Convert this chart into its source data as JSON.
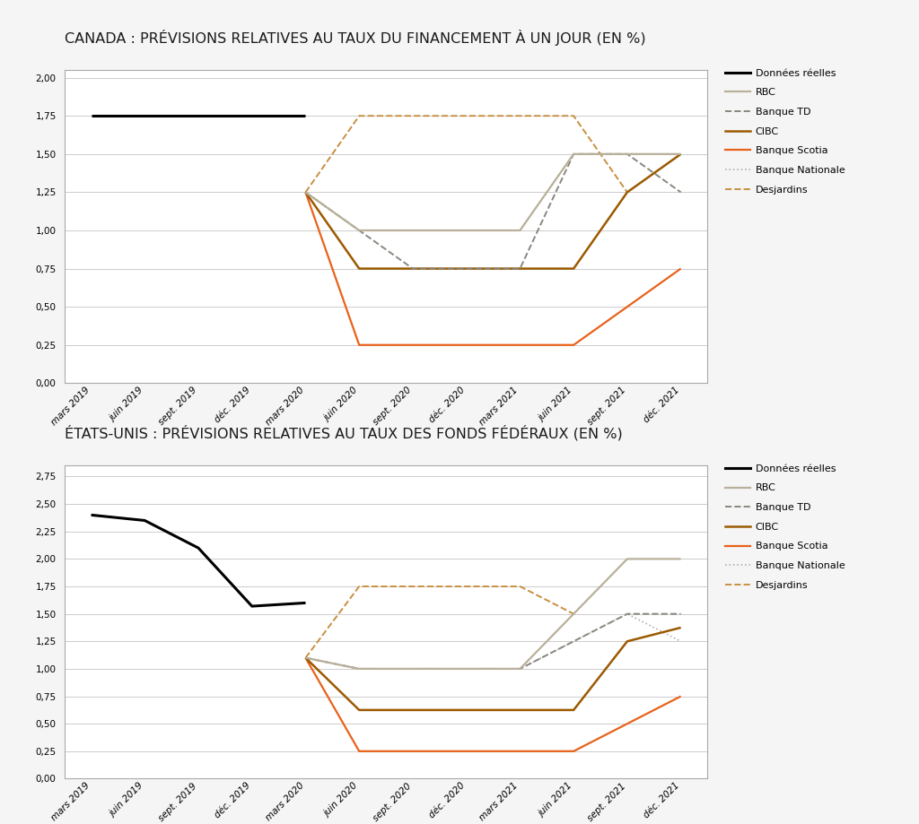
{
  "title1": "CANADA : PRÉVISIONS RELATIVES AU TAUX DU FINANCEMENT À UN JOUR (EN %)",
  "title2": "ÉTATS-UNIS : PRÉVISIONS RELATIVES AU TAUX DES FONDS FÉDÉRAUX (EN %)",
  "x_labels": [
    "mars 2019",
    "juin 2019",
    "sept. 2019",
    "déc. 2019",
    "mars 2020",
    "juin 2020",
    "sept. 2020",
    "déc. 2020",
    "mars 2021",
    "juin 2021",
    "sept. 2021",
    "déc. 2021"
  ],
  "canada": {
    "donnees_reelles": [
      1.75,
      1.75,
      1.75,
      1.75,
      1.75,
      null,
      null,
      null,
      null,
      null,
      null,
      null
    ],
    "rbc": [
      null,
      null,
      null,
      null,
      1.25,
      1.0,
      1.0,
      1.0,
      1.0,
      1.5,
      1.5,
      1.5
    ],
    "banque_td": [
      null,
      null,
      null,
      null,
      1.25,
      1.0,
      0.75,
      0.75,
      0.75,
      1.5,
      1.5,
      1.25
    ],
    "cibc": [
      null,
      null,
      null,
      null,
      1.25,
      0.75,
      0.75,
      0.75,
      0.75,
      0.75,
      1.25,
      1.5
    ],
    "banque_scotia": [
      null,
      null,
      null,
      null,
      1.25,
      0.25,
      0.25,
      0.25,
      0.25,
      0.25,
      0.5,
      0.75
    ],
    "banque_nationale": [
      null,
      null,
      null,
      null,
      1.25,
      1.0,
      1.0,
      1.0,
      1.0,
      1.5,
      1.5,
      1.5
    ],
    "desjardins": [
      null,
      null,
      null,
      null,
      1.25,
      1.75,
      1.75,
      1.75,
      1.75,
      1.75,
      1.25,
      null
    ],
    "ylim": [
      0.0,
      2.05
    ],
    "yticks": [
      0.0,
      0.25,
      0.5,
      0.75,
      1.0,
      1.25,
      1.5,
      1.75,
      2.0
    ]
  },
  "us": {
    "donnees_reelles": [
      2.4,
      2.35,
      2.1,
      1.57,
      1.6,
      null,
      null,
      null,
      null,
      null,
      null,
      null
    ],
    "rbc": [
      null,
      null,
      null,
      null,
      1.1,
      1.0,
      1.0,
      1.0,
      1.0,
      1.5,
      2.0,
      2.0
    ],
    "banque_td": [
      null,
      null,
      null,
      null,
      1.1,
      1.0,
      1.0,
      1.0,
      1.0,
      1.25,
      1.5,
      1.5
    ],
    "cibc": [
      null,
      null,
      null,
      null,
      1.1,
      0.625,
      0.625,
      0.625,
      0.625,
      0.625,
      1.25,
      1.375
    ],
    "banque_scotia": [
      null,
      null,
      null,
      null,
      1.1,
      0.25,
      0.25,
      0.25,
      0.25,
      0.25,
      0.5,
      0.75
    ],
    "banque_nationale": [
      null,
      null,
      null,
      null,
      1.1,
      1.0,
      1.0,
      1.0,
      1.0,
      1.25,
      1.5,
      1.25
    ],
    "desjardins": [
      null,
      null,
      null,
      null,
      1.1,
      1.75,
      1.75,
      1.75,
      1.75,
      1.5,
      null,
      null
    ],
    "ylim": [
      0.0,
      2.85
    ],
    "yticks": [
      0.0,
      0.25,
      0.5,
      0.75,
      1.0,
      1.25,
      1.5,
      1.75,
      2.0,
      2.25,
      2.5,
      2.75
    ]
  },
  "colors": {
    "donnees_reelles": "#000000",
    "rbc": "#b8b09a",
    "banque_td": "#888880",
    "cibc": "#9B5A00",
    "banque_scotia": "#E8621A",
    "banque_nationale": "#b0b0b0",
    "desjardins": "#C89040"
  },
  "lw": {
    "donnees_reelles": 2.2,
    "rbc": 1.6,
    "banque_td": 1.4,
    "cibc": 1.8,
    "banque_scotia": 1.6,
    "banque_nationale": 1.2,
    "desjardins": 1.4
  },
  "ls": {
    "donnees_reelles": "solid",
    "rbc": "solid",
    "banque_td": "dashed",
    "cibc": "solid",
    "banque_scotia": "solid",
    "banque_nationale": "dotted",
    "desjardins": "dashed"
  },
  "legend_labels": [
    "Données réelles",
    "RBC",
    "Banque TD",
    "CIBC",
    "Banque Scotia",
    "Banque Nationale",
    "Desjardins"
  ],
  "legend_keys": [
    "donnees_reelles",
    "rbc",
    "banque_td",
    "cibc",
    "banque_scotia",
    "banque_nationale",
    "desjardins"
  ],
  "background_color": "#f5f5f5",
  "panel_color": "#ffffff",
  "title_color": "#1a1a1a",
  "title_fontsize": 11.5,
  "axis_fontsize": 7.5,
  "legend_fontsize": 8.0,
  "grid_color": "#cccccc",
  "spine_color": "#aaaaaa"
}
